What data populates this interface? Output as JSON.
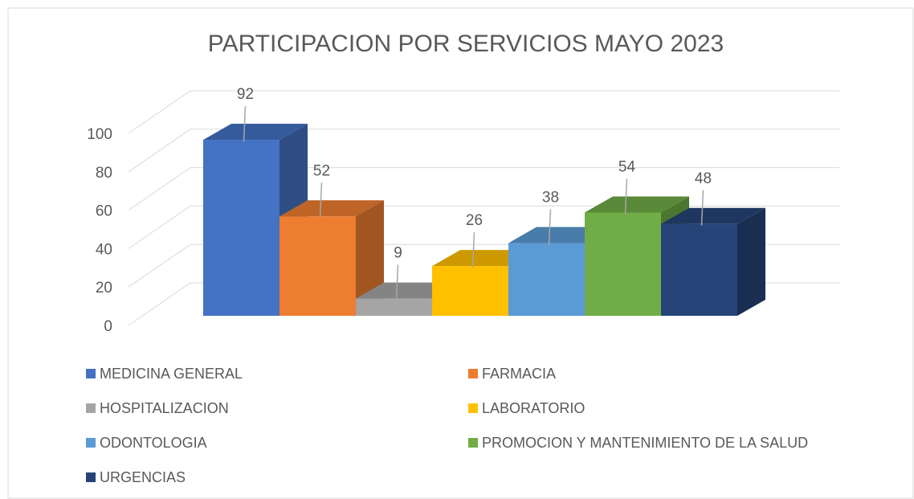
{
  "chart_data": {
    "type": "bar3d",
    "title": "PARTICIPACION POR SERVICIOS MAYO 2023",
    "ylim": [
      0,
      100
    ],
    "yticks": [
      0,
      20,
      40,
      60,
      80,
      100
    ],
    "grid": true,
    "legend": "bottom",
    "series": [
      {
        "name": "MEDICINA GENERAL",
        "color": "#4472c4",
        "values": [
          92
        ]
      },
      {
        "name": "FARMACIA",
        "color": "#ed7d31",
        "values": [
          52
        ]
      },
      {
        "name": "HOSPITALIZACION",
        "color": "#a5a5a5",
        "values": [
          9
        ]
      },
      {
        "name": "LABORATORIO",
        "color": "#ffc000",
        "values": [
          26
        ]
      },
      {
        "name": "ODONTOLOGIA",
        "color": "#5b9bd5",
        "values": [
          38
        ]
      },
      {
        "name": "PROMOCION Y MANTENIMIENTO DE LA SALUD",
        "color": "#70ad47",
        "values": [
          54
        ]
      },
      {
        "name": "URGENCIAS",
        "color": "#264478",
        "values": [
          48
        ]
      }
    ]
  }
}
